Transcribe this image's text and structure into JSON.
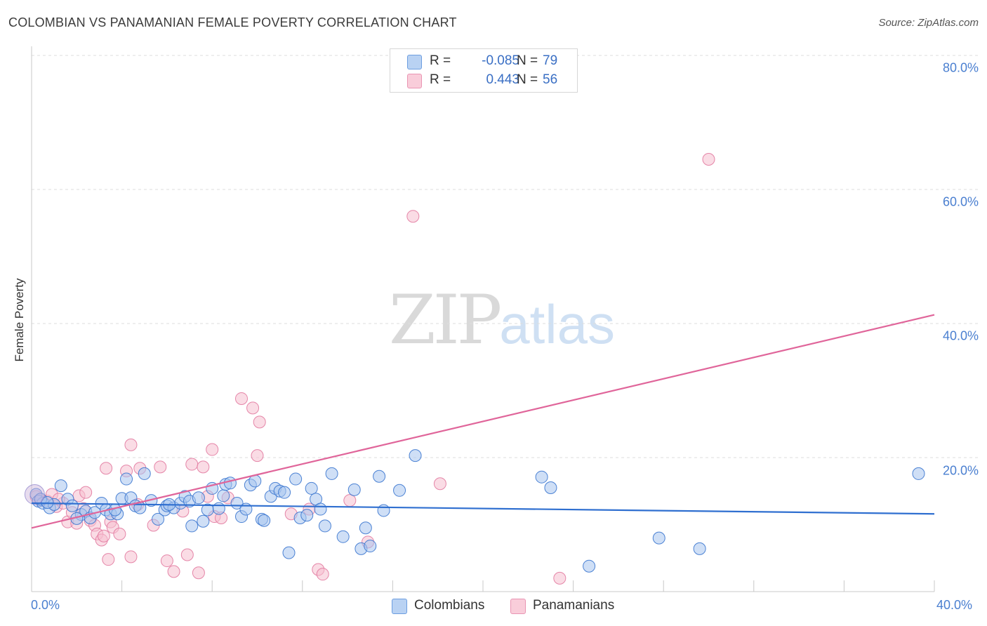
{
  "colors": {
    "colombians_fill": "#a7c5ee",
    "colombians_stroke": "#3a76cf",
    "colombians_line": "#2f6fd0",
    "panamanians_fill": "#f6bfd0",
    "panamanians_stroke": "#e27aa0",
    "panamanians_line": "#e0659a",
    "axis_text": "#4a7fd0",
    "grid": "#dedede"
  },
  "watermark": {
    "zip": "ZIP",
    "atlas": "atlas"
  },
  "legend": {
    "rows": [
      {
        "r_label": "R =",
        "r_value": "-0.085",
        "n_label": "N =",
        "n_value": "79"
      },
      {
        "r_label": "R =",
        "r_value": "0.443",
        "n_label": "N =",
        "n_value": "56"
      }
    ]
  },
  "chart_data": {
    "type": "scatter",
    "title": "COLOMBIAN VS PANAMANIAN FEMALE POVERTY CORRELATION CHART",
    "source": "Source: ZipAtlas.com",
    "xlabel": "",
    "ylabel": "Female Poverty",
    "xlim": [
      0,
      40
    ],
    "ylim": [
      0,
      80
    ],
    "x_tick_labels": [
      "0.0%",
      "40.0%"
    ],
    "y_ticks": [
      20,
      40,
      60,
      80
    ],
    "y_tick_labels": [
      "20.0%",
      "40.0%",
      "60.0%",
      "80.0%"
    ],
    "grid": true,
    "series": [
      {
        "name": "Colombians",
        "r": -0.085,
        "n": 79,
        "trend": {
          "x": [
            0,
            40
          ],
          "y": [
            13.2,
            11.6
          ]
        },
        "points": [
          [
            0.2,
            14.5
          ],
          [
            0.3,
            13.5
          ],
          [
            0.5,
            13.2
          ],
          [
            0.8,
            12.5
          ],
          [
            1.0,
            13.0
          ],
          [
            1.3,
            15.8
          ],
          [
            1.6,
            13.8
          ],
          [
            1.8,
            12.8
          ],
          [
            2.2,
            11.5
          ],
          [
            2.4,
            12.0
          ],
          [
            2.6,
            11.0
          ],
          [
            2.8,
            11.8
          ],
          [
            3.1,
            13.2
          ],
          [
            3.3,
            12.2
          ],
          [
            3.5,
            11.6
          ],
          [
            3.8,
            11.6
          ],
          [
            4.0,
            13.9
          ],
          [
            4.2,
            16.8
          ],
          [
            4.4,
            14.0
          ],
          [
            4.6,
            12.8
          ],
          [
            4.8,
            12.5
          ],
          [
            5.0,
            17.6
          ],
          [
            5.3,
            13.6
          ],
          [
            5.6,
            10.8
          ],
          [
            5.9,
            12.2
          ],
          [
            6.0,
            12.8
          ],
          [
            6.3,
            12.5
          ],
          [
            6.6,
            13.2
          ],
          [
            6.8,
            14.2
          ],
          [
            7.0,
            13.5
          ],
          [
            7.1,
            9.8
          ],
          [
            7.4,
            14.0
          ],
          [
            7.6,
            10.5
          ],
          [
            7.8,
            12.2
          ],
          [
            8.0,
            15.4
          ],
          [
            8.3,
            12.4
          ],
          [
            8.5,
            14.3
          ],
          [
            8.6,
            16.0
          ],
          [
            8.8,
            16.2
          ],
          [
            9.1,
            13.2
          ],
          [
            9.3,
            11.2
          ],
          [
            9.5,
            12.3
          ],
          [
            9.7,
            15.9
          ],
          [
            9.9,
            16.5
          ],
          [
            10.2,
            10.8
          ],
          [
            10.3,
            10.6
          ],
          [
            10.6,
            14.2
          ],
          [
            10.8,
            15.4
          ],
          [
            11.0,
            15.0
          ],
          [
            11.2,
            14.8
          ],
          [
            11.4,
            5.8
          ],
          [
            11.7,
            16.8
          ],
          [
            11.9,
            11.0
          ],
          [
            12.2,
            11.4
          ],
          [
            12.4,
            15.4
          ],
          [
            12.6,
            13.8
          ],
          [
            12.8,
            12.3
          ],
          [
            13.0,
            9.8
          ],
          [
            13.3,
            17.6
          ],
          [
            13.8,
            8.2
          ],
          [
            14.3,
            15.2
          ],
          [
            14.6,
            6.4
          ],
          [
            14.8,
            9.5
          ],
          [
            15.0,
            6.8
          ],
          [
            15.4,
            17.2
          ],
          [
            15.6,
            12.1
          ],
          [
            16.3,
            15.1
          ],
          [
            17.0,
            20.3
          ],
          [
            22.6,
            17.1
          ],
          [
            23.0,
            15.5
          ],
          [
            24.7,
            3.8
          ],
          [
            27.8,
            8.0
          ],
          [
            29.6,
            6.4
          ],
          [
            39.3,
            17.6
          ],
          [
            0.4,
            13.8
          ],
          [
            0.7,
            13.3
          ],
          [
            2.0,
            10.9
          ],
          [
            3.7,
            12.2
          ],
          [
            6.1,
            13.0
          ]
        ]
      },
      {
        "name": "Panamanians",
        "r": 0.443,
        "n": 56,
        "trend": {
          "x": [
            0,
            40
          ],
          "y": [
            9.5,
            41.3
          ]
        },
        "points": [
          [
            0.2,
            14.2
          ],
          [
            0.4,
            13.6
          ],
          [
            0.7,
            13.5
          ],
          [
            0.9,
            14.5
          ],
          [
            1.1,
            12.7
          ],
          [
            1.4,
            13.2
          ],
          [
            1.6,
            10.4
          ],
          [
            1.8,
            11.8
          ],
          [
            2.0,
            10.2
          ],
          [
            2.1,
            14.3
          ],
          [
            2.4,
            14.8
          ],
          [
            2.6,
            10.6
          ],
          [
            2.8,
            9.9
          ],
          [
            2.9,
            8.6
          ],
          [
            3.1,
            7.7
          ],
          [
            3.2,
            8.3
          ],
          [
            3.3,
            18.4
          ],
          [
            3.4,
            4.8
          ],
          [
            3.5,
            10.4
          ],
          [
            3.6,
            9.6
          ],
          [
            3.9,
            8.6
          ],
          [
            4.2,
            18.0
          ],
          [
            4.4,
            5.2
          ],
          [
            4.4,
            21.9
          ],
          [
            4.7,
            13.0
          ],
          [
            4.8,
            18.4
          ],
          [
            5.4,
            9.9
          ],
          [
            5.7,
            18.6
          ],
          [
            6.0,
            4.6
          ],
          [
            6.3,
            3.0
          ],
          [
            6.7,
            12.0
          ],
          [
            6.9,
            5.5
          ],
          [
            7.1,
            19.0
          ],
          [
            7.4,
            2.8
          ],
          [
            7.6,
            18.6
          ],
          [
            7.8,
            14.2
          ],
          [
            8.0,
            21.2
          ],
          [
            8.1,
            11.2
          ],
          [
            8.4,
            11.0
          ],
          [
            8.7,
            14.0
          ],
          [
            9.3,
            28.8
          ],
          [
            9.8,
            27.4
          ],
          [
            10.0,
            20.3
          ],
          [
            10.1,
            25.3
          ],
          [
            11.5,
            11.6
          ],
          [
            12.3,
            12.3
          ],
          [
            12.7,
            3.3
          ],
          [
            12.9,
            2.6
          ],
          [
            14.1,
            13.6
          ],
          [
            14.9,
            7.4
          ],
          [
            16.9,
            56.0
          ],
          [
            18.1,
            16.1
          ],
          [
            23.4,
            2.0
          ],
          [
            30.0,
            64.5
          ],
          [
            1.2,
            13.8
          ],
          [
            2.3,
            12.4
          ]
        ]
      }
    ]
  }
}
